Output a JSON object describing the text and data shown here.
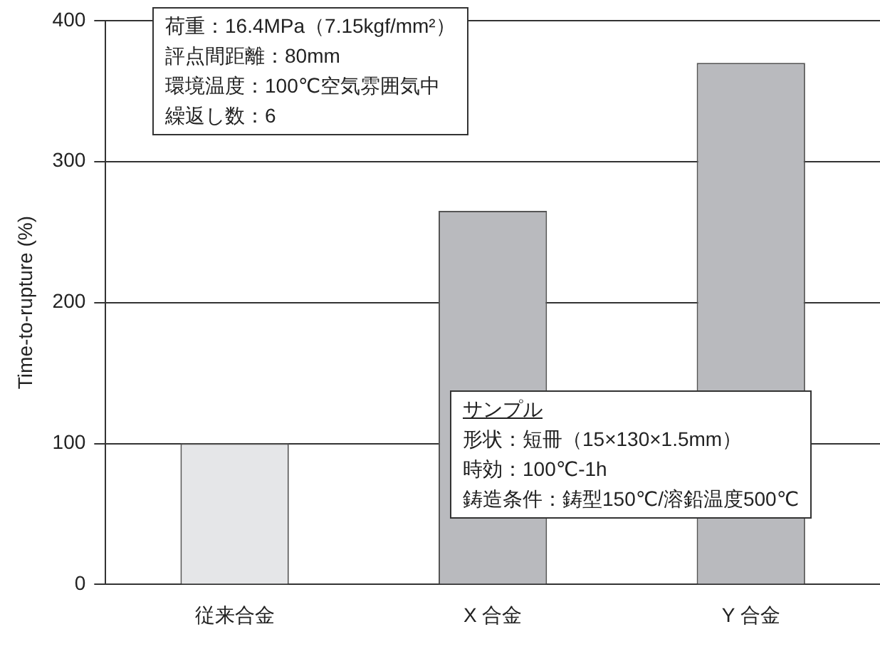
{
  "chart_data": {
    "type": "bar",
    "ylabel": "Time-to-rupture (%)",
    "categories": [
      "従来合金",
      "X 合金",
      "Y 合金"
    ],
    "values": [
      100,
      265,
      370
    ],
    "colors": [
      "#e5e6e8",
      "#b9babe",
      "#b9babe"
    ],
    "ylim": [
      0,
      400
    ],
    "yticks": [
      0,
      100,
      200,
      300,
      400
    ],
    "grid": "y",
    "legend": false,
    "annotations": [
      "荷重：16.4MPa（7.15kgf/mm²）",
      "評点間距離：80mm",
      "環境温度：100℃空気雰囲気中",
      "繰返し数：6",
      "サンプル",
      "形状：短冊（15×130×1.5mm）",
      "時効：100℃-1h",
      "鋳造条件：鋳型150℃/溶鉛温度500℃"
    ]
  }
}
